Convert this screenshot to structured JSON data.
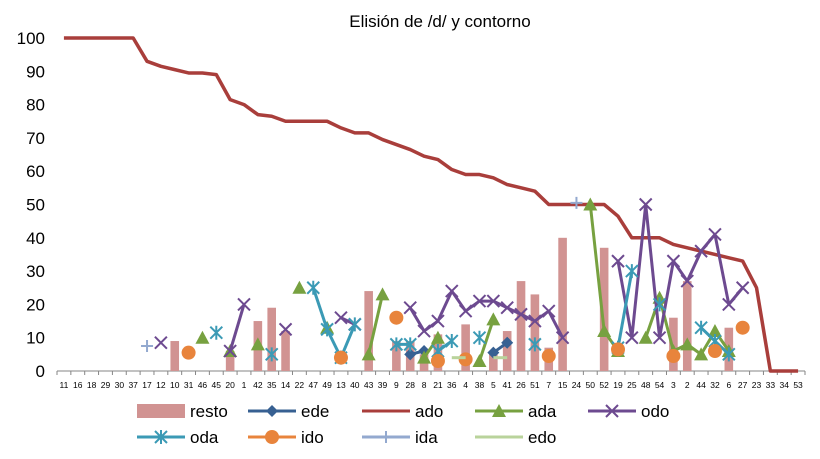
{
  "chart_data": {
    "type": "bar+line",
    "title": "Elisión de /d/ y contorno",
    "xlabel": "",
    "ylabel": "",
    "ylim": [
      0,
      100
    ],
    "yticks": [
      0,
      10,
      20,
      30,
      40,
      50,
      60,
      70,
      80,
      90,
      100
    ],
    "categories": [
      "11",
      "16",
      "18",
      "29",
      "30",
      "37",
      "17",
      "12",
      "10",
      "31",
      "46",
      "45",
      "20",
      "1",
      "42",
      "35",
      "14",
      "22",
      "47",
      "49",
      "13",
      "40",
      "43",
      "39",
      "9",
      "28",
      "8",
      "21",
      "36",
      "4",
      "38",
      "5",
      "41",
      "26",
      "51",
      "7",
      "15",
      "24",
      "50",
      "52",
      "19",
      "25",
      "48",
      "54",
      "3",
      "2",
      "44",
      "32",
      "6",
      "27",
      "23",
      "33",
      "34",
      "53"
    ],
    "series": [
      {
        "name": "resto",
        "type": "bar",
        "color": "#d19392",
        "values": [
          null,
          null,
          null,
          null,
          null,
          null,
          null,
          null,
          9,
          null,
          null,
          null,
          6,
          null,
          15,
          19,
          12,
          null,
          null,
          null,
          null,
          null,
          24,
          null,
          9,
          9,
          5,
          11,
          null,
          14,
          null,
          5,
          12,
          27,
          23,
          7,
          40,
          null,
          null,
          37,
          null,
          null,
          null,
          null,
          16,
          27,
          null,
          null,
          13,
          null,
          null,
          null,
          null,
          null
        ]
      },
      {
        "name": "ede",
        "type": "line",
        "color": "#376092",
        "marker": "diamond",
        "values": [
          null,
          null,
          null,
          null,
          null,
          null,
          null,
          null,
          null,
          null,
          null,
          null,
          null,
          null,
          null,
          null,
          null,
          null,
          null,
          null,
          null,
          null,
          null,
          null,
          null,
          5,
          6,
          null,
          null,
          null,
          null,
          5.5,
          8.5,
          null,
          null,
          null,
          null,
          null,
          null,
          null,
          null,
          null,
          null,
          null,
          null,
          null,
          null,
          null,
          null,
          null,
          null,
          null,
          null,
          null
        ]
      },
      {
        "name": "ado",
        "type": "line",
        "color": "#a93e3b",
        "marker": "none",
        "values": [
          100,
          100,
          100,
          100,
          100,
          100,
          93,
          91.5,
          90.5,
          89.5,
          89.5,
          89,
          81.5,
          80,
          77,
          76.5,
          75,
          75,
          75,
          75,
          73,
          71.5,
          71.5,
          69.5,
          68,
          66.5,
          64.5,
          63.5,
          60.5,
          59,
          59,
          58,
          56,
          55,
          54,
          50,
          50,
          50,
          50,
          50,
          46.5,
          40,
          40,
          40,
          38,
          37,
          36,
          35,
          34,
          33,
          25,
          0,
          0,
          0
        ]
      },
      {
        "name": "ada",
        "type": "line",
        "color": "#77a140",
        "marker": "triangle",
        "values": [
          null,
          null,
          null,
          null,
          null,
          null,
          null,
          null,
          null,
          null,
          10,
          null,
          6,
          null,
          8,
          null,
          null,
          25,
          null,
          13,
          null,
          null,
          5,
          23,
          null,
          null,
          4,
          10,
          null,
          null,
          3,
          15.5,
          null,
          null,
          null,
          null,
          null,
          null,
          50,
          12,
          6,
          null,
          10,
          22,
          6,
          8,
          5,
          12,
          6,
          null,
          null,
          null,
          null,
          null
        ]
      },
      {
        "name": "odo",
        "type": "line",
        "color": "#6d4a90",
        "marker": "x",
        "values": [
          null,
          null,
          null,
          null,
          null,
          null,
          null,
          8.5,
          null,
          null,
          null,
          null,
          6,
          20,
          null,
          null,
          12.5,
          null,
          null,
          null,
          16,
          14,
          null,
          null,
          null,
          19,
          12,
          15,
          24,
          18,
          21,
          21,
          19,
          17,
          15,
          18,
          10,
          null,
          null,
          null,
          33,
          10,
          50,
          10,
          33,
          27,
          36,
          41,
          20,
          25,
          null,
          null,
          null,
          null
        ]
      },
      {
        "name": "oda",
        "type": "line",
        "color": "#3b9ab5",
        "marker": "asterisk",
        "values": [
          null,
          null,
          null,
          null,
          null,
          null,
          null,
          null,
          null,
          null,
          null,
          11.5,
          null,
          null,
          null,
          5,
          null,
          null,
          25,
          12.5,
          4,
          14,
          null,
          null,
          8,
          8,
          null,
          6,
          9,
          null,
          10,
          null,
          null,
          null,
          8,
          null,
          null,
          null,
          null,
          null,
          7,
          30,
          null,
          20,
          null,
          null,
          13,
          9,
          5,
          null,
          null,
          null,
          null,
          null
        ]
      },
      {
        "name": "ido",
        "type": "line",
        "color": "#e8843c",
        "marker": "circle",
        "values": [
          null,
          null,
          null,
          null,
          null,
          null,
          null,
          null,
          null,
          5.5,
          null,
          null,
          null,
          null,
          null,
          null,
          null,
          null,
          null,
          null,
          4,
          null,
          null,
          null,
          16,
          null,
          null,
          3,
          null,
          3.5,
          null,
          null,
          null,
          null,
          null,
          4.5,
          null,
          null,
          null,
          null,
          6.5,
          null,
          null,
          null,
          4.5,
          null,
          null,
          6,
          null,
          13,
          null,
          null,
          null,
          null
        ]
      },
      {
        "name": "ida",
        "type": "line",
        "color": "#93a9cf",
        "marker": "plus",
        "values": [
          null,
          null,
          null,
          null,
          null,
          null,
          7.5,
          null,
          null,
          null,
          null,
          null,
          null,
          null,
          null,
          null,
          null,
          null,
          null,
          null,
          null,
          null,
          null,
          null,
          null,
          null,
          null,
          null,
          null,
          null,
          null,
          null,
          null,
          null,
          null,
          null,
          null,
          50.5,
          null,
          null,
          null,
          null,
          null,
          null,
          null,
          null,
          null,
          null,
          null,
          null,
          null,
          null,
          null,
          null
        ]
      },
      {
        "name": "edo",
        "type": "line",
        "color": "#b9d39b",
        "marker": "none",
        "values": [
          null,
          null,
          null,
          null,
          null,
          null,
          null,
          null,
          null,
          null,
          null,
          null,
          null,
          null,
          null,
          null,
          null,
          null,
          null,
          null,
          null,
          null,
          null,
          null,
          null,
          null,
          null,
          null,
          4,
          4,
          null,
          4,
          4,
          null,
          null,
          null,
          null,
          null,
          null,
          null,
          null,
          null,
          null,
          null,
          null,
          null,
          null,
          null,
          null,
          null,
          null,
          null,
          null,
          null
        ]
      }
    ],
    "legend": {
      "placement": "bottom"
    }
  }
}
